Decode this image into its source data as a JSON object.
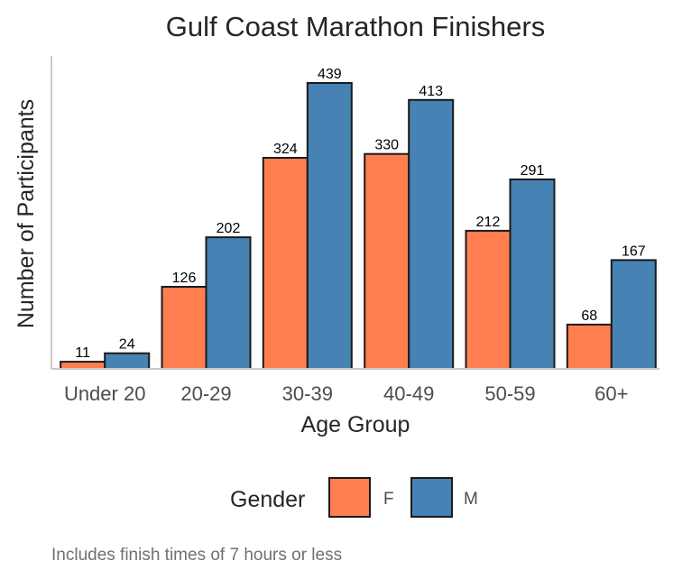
{
  "chart_data": {
    "type": "bar",
    "title": "Gulf Coast Marathon Finishers",
    "xlabel": "Age Group",
    "ylabel": "Number of Participants",
    "categories": [
      "Under 20",
      "20-29",
      "30-39",
      "40-49",
      "50-59",
      "60+"
    ],
    "series": [
      {
        "name": "F",
        "color": "#FF7F50",
        "values": [
          11,
          126,
          324,
          330,
          212,
          68
        ]
      },
      {
        "name": "M",
        "color": "#4682B4",
        "values": [
          24,
          202,
          439,
          413,
          291,
          167
        ]
      }
    ],
    "ylim": [
      0,
      460
    ],
    "grid": false,
    "legend": {
      "title": "Gender",
      "position": "bottom"
    },
    "caption": "Includes finish times of 7 hours or less"
  }
}
